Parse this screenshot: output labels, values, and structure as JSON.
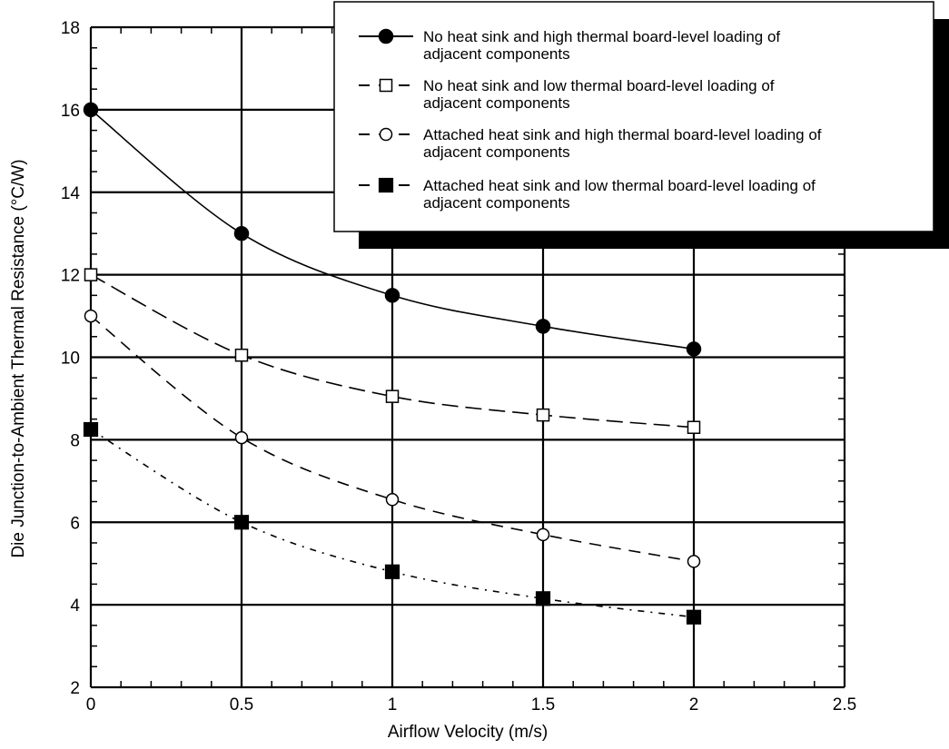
{
  "chart_data": {
    "type": "line",
    "title": "",
    "xlabel": "Airflow Velocity (m/s)",
    "ylabel": "Die Junction-to-Ambient Thermal Resistance (°C/W)",
    "xlim": [
      0,
      2.5
    ],
    "ylim": [
      2,
      18
    ],
    "x_ticks": [
      "0",
      "0.5",
      "1",
      "1.5",
      "2",
      "2.5"
    ],
    "y_ticks": [
      "2",
      "4",
      "6",
      "8",
      "10",
      "12",
      "14",
      "16",
      "18"
    ],
    "grid": true,
    "legend_position": "top-right",
    "series": [
      {
        "name_lines": [
          "No heat sink and high thermal board-level loading of",
          "adjacent components"
        ],
        "marker": "filled-circle",
        "line_style": "solid",
        "x": [
          0,
          0.5,
          1,
          1.5,
          2
        ],
        "y": [
          16,
          13,
          11.5,
          10.75,
          10.2
        ]
      },
      {
        "name_lines": [
          "No heat sink and low thermal board-level loading of",
          "adjacent components"
        ],
        "marker": "open-square",
        "line_style": "long-dash",
        "x": [
          0,
          0.5,
          1,
          1.5,
          2
        ],
        "y": [
          12,
          10.05,
          9.05,
          8.6,
          8.3
        ]
      },
      {
        "name_lines": [
          "Attached heat sink and high thermal board-level loading of",
          "adjacent components"
        ],
        "marker": "open-circle",
        "line_style": "dash",
        "x": [
          0,
          0.5,
          1,
          1.5,
          2
        ],
        "y": [
          11,
          8.05,
          6.55,
          5.7,
          5.05
        ]
      },
      {
        "name_lines": [
          "Attached heat sink and low thermal board-level loading of",
          "adjacent components"
        ],
        "marker": "filled-square",
        "line_style": "dot-dash",
        "x": [
          0,
          0.5,
          1,
          1.5,
          2
        ],
        "y": [
          8.25,
          6,
          4.8,
          4.15,
          3.7
        ]
      }
    ]
  }
}
